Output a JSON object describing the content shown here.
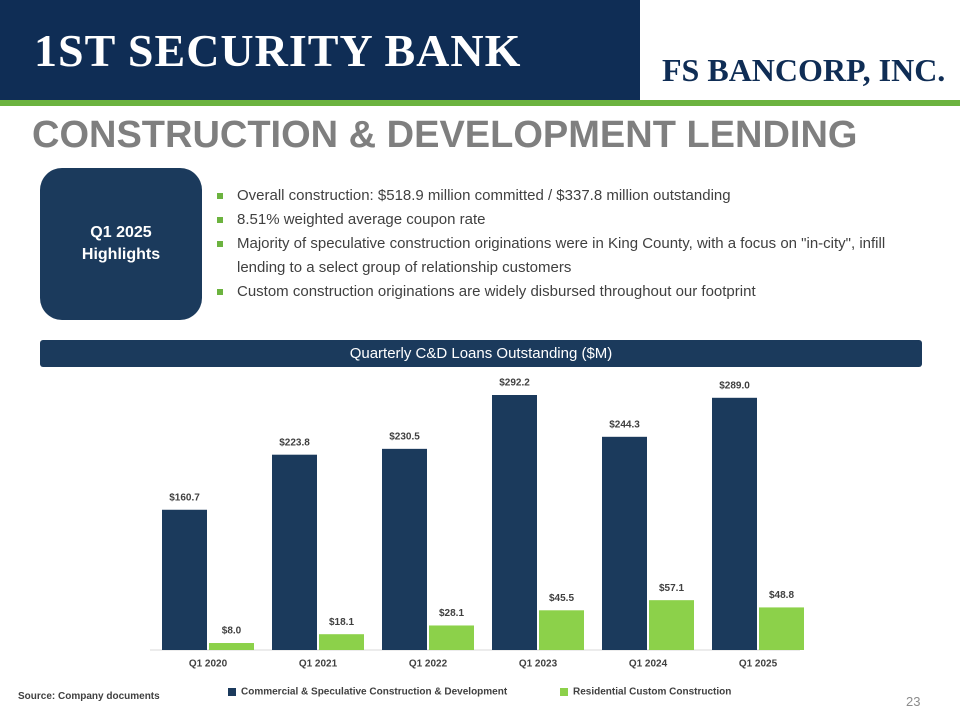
{
  "header": {
    "logo_left": "1ST SECURITY BANK",
    "logo_right": "FS BANCORP, INC."
  },
  "title": "CONSTRUCTION &  DEVELOPMENT LENDING",
  "highlights": {
    "label": [
      "Q1 2025",
      "Highlights"
    ],
    "bullets": [
      "Overall construction: $518.9 million committed / $337.8 million outstanding",
      "8.51% weighted average coupon rate",
      "Majority of speculative construction originations were in King County, with a focus on \"in-city\", infill lending to a select group of  relationship customers",
      "Custom construction originations are widely disbursed throughout our footprint"
    ]
  },
  "chart_data": {
    "type": "bar",
    "title": "Quarterly C&D Loans Outstanding ($M)",
    "categories": [
      "Q1 2020",
      "Q1 2021",
      "Q1 2022",
      "Q1 2023",
      "Q1 2024",
      "Q1 2025"
    ],
    "series": [
      {
        "name": "Commercial & Speculative Construction & Development",
        "color": "#1b3a5c",
        "values": [
          160.7,
          223.8,
          230.5,
          292.2,
          244.3,
          289.0
        ],
        "value_labels": [
          "$160.7",
          "$223.8",
          "$230.5",
          "$292.2",
          "$244.3",
          "$289.0"
        ]
      },
      {
        "name": "Residential Custom Construction",
        "color": "#8cd14a",
        "values": [
          8.0,
          18.1,
          28.1,
          45.5,
          57.1,
          48.8
        ],
        "value_labels": [
          "$8.0",
          "$18.1",
          "$28.1",
          "$45.5",
          "$57.1",
          "$48.8"
        ]
      }
    ]
  },
  "source": "Source: Company documents",
  "page_number": "23"
}
